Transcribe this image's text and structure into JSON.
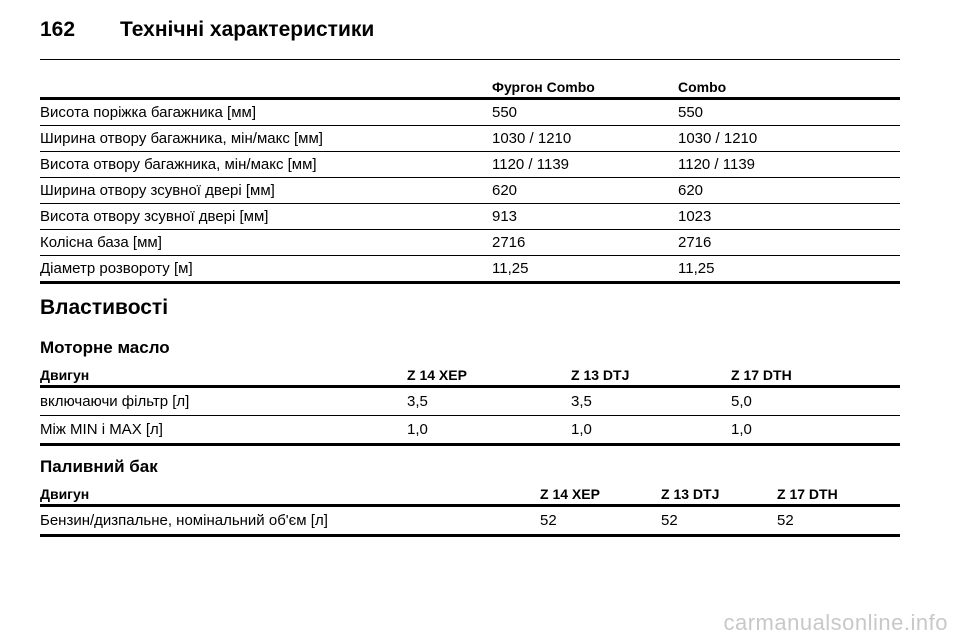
{
  "header": {
    "page_number": "162",
    "title": "Технічні характеристики"
  },
  "dimensions": {
    "columns": [
      "",
      "Фургон Combo",
      "Combo"
    ],
    "rows": [
      [
        "Висота поріжка багажника [мм]",
        "550",
        "550"
      ],
      [
        "Ширина отвору багажника, мін/макс [мм]",
        "1030 / 1210",
        "1030 / 1210"
      ],
      [
        "Висота отвору багажника, мін/макс [мм]",
        "1120 / 1139",
        "1120 / 1139"
      ],
      [
        "Ширина отвору зсувної дверi [мм]",
        "620",
        "620"
      ],
      [
        "Висота отвору зсувної дверi [мм]",
        "913",
        "1023"
      ],
      [
        "Колісна база [мм]",
        "2716",
        "2716"
      ],
      [
        "Діаметр розвороту [м]",
        "11,25",
        "11,25"
      ]
    ]
  },
  "properties": {
    "heading": "Властивості"
  },
  "engine_oil": {
    "heading": "Моторне масло",
    "columns": [
      "Двигун",
      "Z 14 XEP",
      "Z 13 DTJ",
      "Z 17 DTH"
    ],
    "rows": [
      [
        "включаючи фільтр [л]",
        "3,5",
        "3,5",
        "5,0"
      ],
      [
        "Між MIN і MAX [л]",
        "1,0",
        "1,0",
        "1,0"
      ]
    ]
  },
  "fuel_tank": {
    "heading": "Паливний бак",
    "columns": [
      "Двигун",
      "Z 14 XEP",
      "Z 13 DTJ",
      "Z 17 DTH"
    ],
    "rows": [
      [
        "Бензин/дизпальне, номінальний об'єм [л]",
        "52",
        "52",
        "52"
      ]
    ]
  },
  "watermark": "carmanualsonline.info"
}
